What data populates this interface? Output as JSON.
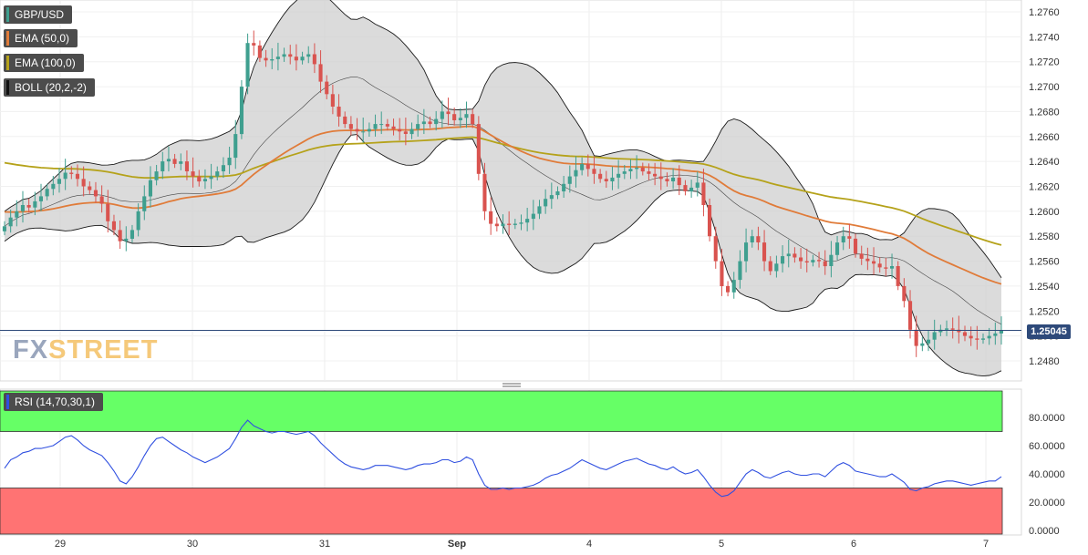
{
  "legend": {
    "symbol": "GBP/USD",
    "ema50": "EMA (50,0)",
    "ema100": "EMA (100,0)",
    "boll": "BOLL (20,2,-2)",
    "rsi": "RSI (14,70,30,1)"
  },
  "logo": {
    "fx": "FX",
    "street": "STREET"
  },
  "last_price_label": "1.25045",
  "colors": {
    "bull": "#3f9f8f",
    "bear": "#d9534f",
    "ema50": "#e07b39",
    "ema100": "#b5a21a",
    "band_fill": "#cfcfcf",
    "rsi_line": "#3050e0",
    "overbought": "#66ff66",
    "oversold": "#ff7373",
    "price_line": "#2e4a7a"
  },
  "chart_data": [
    {
      "type": "candlestick",
      "title": "GBP/USD",
      "y_ticks": [
        "1.2760",
        "1.2740",
        "1.2720",
        "1.2700",
        "1.2680",
        "1.2660",
        "1.2640",
        "1.2620",
        "1.2600",
        "1.2580",
        "1.2560",
        "1.2540",
        "1.2520",
        "1.2500",
        "1.2480"
      ],
      "ylim": [
        1.2465,
        1.2765
      ],
      "x_labels": [
        "29",
        "30",
        "31",
        "Sep",
        "4",
        "5",
        "6",
        "7"
      ],
      "last_price": 1.25045,
      "candles_close": [
        1.2588,
        1.2595,
        1.26,
        1.2605,
        1.2603,
        1.2608,
        1.2612,
        1.2618,
        1.2622,
        1.2626,
        1.2631,
        1.263,
        1.2626,
        1.262,
        1.2617,
        1.2612,
        1.2606,
        1.2592,
        1.2585,
        1.2576,
        1.2578,
        1.2585,
        1.26,
        1.2612,
        1.2625,
        1.2632,
        1.264,
        1.2642,
        1.2638,
        1.264,
        1.2632,
        1.2628,
        1.2624,
        1.2626,
        1.2628,
        1.2632,
        1.2637,
        1.2643,
        1.2662,
        1.27,
        1.2735,
        1.2733,
        1.2723,
        1.2721,
        1.2722,
        1.2724,
        1.2726,
        1.2724,
        1.2721,
        1.2724,
        1.2726,
        1.2718,
        1.2704,
        1.2694,
        1.2684,
        1.2676,
        1.267,
        1.2666,
        1.2664,
        1.2664,
        1.2666,
        1.267,
        1.267,
        1.2668,
        1.2666,
        1.2664,
        1.2662,
        1.2666,
        1.267,
        1.2672,
        1.267,
        1.2674,
        1.268,
        1.2678,
        1.2673,
        1.2675,
        1.2678,
        1.267,
        1.263,
        1.26,
        1.259,
        1.2588,
        1.259,
        1.2589,
        1.259,
        1.2591,
        1.2594,
        1.2598,
        1.2604,
        1.261,
        1.2613,
        1.2616,
        1.2622,
        1.2628,
        1.2633,
        1.2638,
        1.2634,
        1.263,
        1.2626,
        1.2624,
        1.2627,
        1.263,
        1.2632,
        1.2634,
        1.2635,
        1.2632,
        1.263,
        1.2628,
        1.2626,
        1.2624,
        1.2627,
        1.2621,
        1.2616,
        1.2619,
        1.2623,
        1.2605,
        1.258,
        1.256,
        1.254,
        1.2535,
        1.2545,
        1.256,
        1.2575,
        1.258,
        1.2575,
        1.256,
        1.2552,
        1.2558,
        1.2564,
        1.2566,
        1.2563,
        1.256,
        1.2559,
        1.2561,
        1.256,
        1.2556,
        1.2565,
        1.2575,
        1.258,
        1.2578,
        1.2566,
        1.2562,
        1.256,
        1.2558,
        1.2555,
        1.2554,
        1.2556,
        1.254,
        1.2528,
        1.2505,
        1.2492,
        1.2494,
        1.2497,
        1.2503,
        1.2505,
        1.2506,
        1.2505,
        1.2503,
        1.25,
        1.2498,
        1.2497,
        1.2498,
        1.25,
        1.2502,
        1.25045
      ]
    },
    {
      "type": "line",
      "title": "RSI (14,70,30,1)",
      "y_ticks": [
        "80.0000",
        "60.0000",
        "40.0000",
        "20.0000",
        "0.0000"
      ],
      "ylim": [
        0,
        100
      ],
      "overbought": 70,
      "oversold": 30,
      "values": [
        44,
        50,
        52,
        55,
        56,
        58,
        58,
        59,
        60,
        63,
        66,
        67,
        64,
        60,
        57,
        55,
        53,
        48,
        42,
        35,
        33,
        38,
        45,
        53,
        60,
        65,
        66,
        63,
        60,
        57,
        55,
        52,
        50,
        48,
        50,
        52,
        55,
        58,
        65,
        73,
        78,
        74,
        72,
        70,
        69,
        70,
        70,
        69,
        68,
        69,
        70,
        67,
        62,
        58,
        54,
        50,
        47,
        45,
        44,
        43,
        44,
        46,
        46,
        46,
        45,
        44,
        43,
        44,
        46,
        47,
        47,
        48,
        50,
        50,
        48,
        49,
        52,
        50,
        40,
        32,
        29,
        29,
        30,
        29,
        30,
        30,
        31,
        32,
        34,
        37,
        39,
        40,
        42,
        44,
        47,
        50,
        48,
        46,
        44,
        43,
        45,
        47,
        49,
        50,
        51,
        49,
        47,
        46,
        44,
        43,
        45,
        42,
        40,
        41,
        43,
        38,
        32,
        27,
        24,
        25,
        28,
        34,
        40,
        43,
        41,
        38,
        37,
        39,
        41,
        42,
        40,
        39,
        39,
        40,
        40,
        38,
        42,
        46,
        48,
        46,
        42,
        41,
        40,
        39,
        38,
        38,
        40,
        37,
        34,
        29,
        28,
        30,
        31,
        33,
        34,
        35,
        35,
        34,
        33,
        32,
        33,
        34,
        35,
        35,
        38
      ]
    }
  ]
}
